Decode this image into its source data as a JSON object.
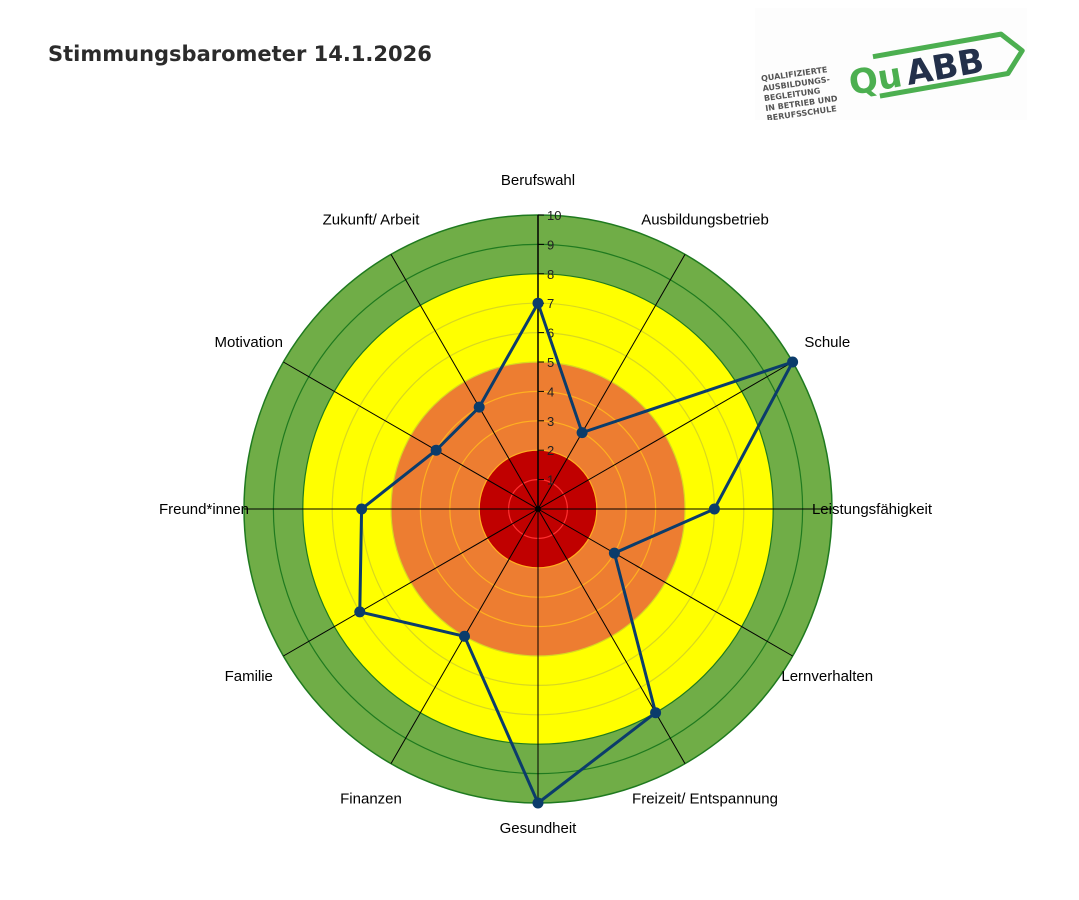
{
  "header": {
    "title": "Stimmungsbarometer 14.1.2026"
  },
  "logo": {
    "text": "QuABB",
    "tagline": [
      "QUALIFIZIERTE",
      "AUSBILDUNGS-",
      "BEGLEITUNG",
      "IN BETRIEB UND",
      "BERUFSSCHULE"
    ],
    "colors": {
      "green": "#4caf50",
      "navy": "#23304a"
    }
  },
  "chart_data": {
    "type": "radar",
    "categories": [
      "Berufswahl",
      "Ausbildungsbetrieb",
      "Schule",
      "Leistungsfähigkeit",
      "Lernverhalten",
      "Freizeit/ Entspannung",
      "Gesundheit",
      "Finanzen",
      "Familie",
      "Freund*innen",
      "Motivation",
      "Zukunft/ Arbeit"
    ],
    "values": [
      7,
      3,
      10,
      6,
      3,
      8,
      10,
      5,
      7,
      6,
      4,
      4
    ],
    "rlim": [
      0,
      10
    ],
    "ticks": [
      "1",
      "2",
      "3",
      "4",
      "5",
      "6",
      "7",
      "8",
      "9",
      "10"
    ],
    "bands": [
      {
        "from": 0,
        "to": 2,
        "color": "#c00000",
        "line": "#ff3030"
      },
      {
        "from": 2,
        "to": 5,
        "color": "#ed7d31",
        "line": "#ffb020"
      },
      {
        "from": 5,
        "to": 8,
        "color": "#ffff00",
        "line": "#d8d820"
      },
      {
        "from": 8,
        "to": 10,
        "color": "#70ad47",
        "line": "#1f7a1f"
      }
    ],
    "series_color": "#0b3c6b",
    "grid": true
  }
}
